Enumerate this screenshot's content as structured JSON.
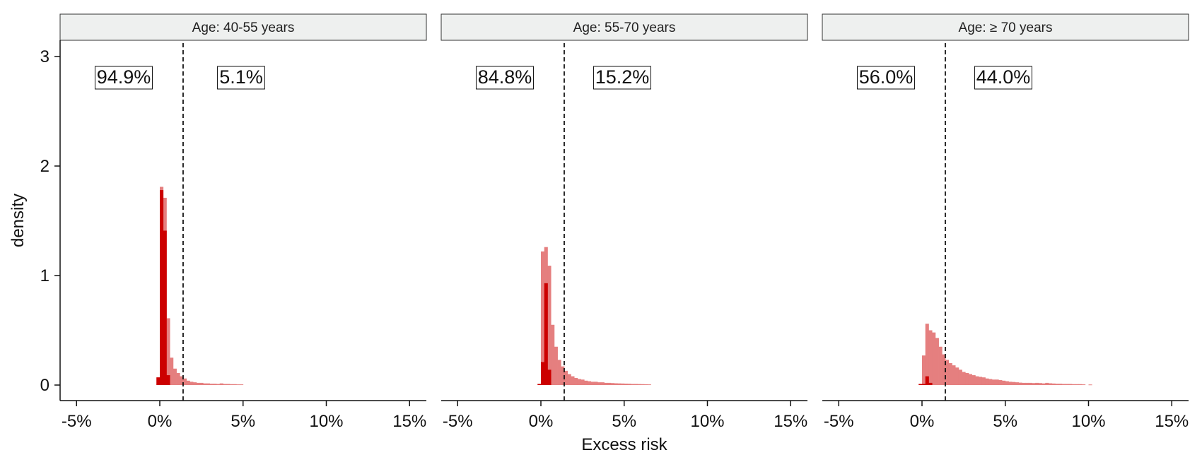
{
  "chart_data": {
    "type": "histogram",
    "ylabel": "density",
    "xlabel": "Excess risk",
    "ylim": [
      -0.14,
      3.15
    ],
    "xlim": [
      -6,
      16
    ],
    "yticks": [
      0,
      1,
      2,
      3
    ],
    "ytick_labels": [
      "0",
      "1",
      "2",
      "3"
    ],
    "xticks": [
      -5,
      0,
      5,
      10,
      15
    ],
    "xtick_labels": [
      "-5%",
      "0%",
      "5%",
      "10%",
      "15%"
    ],
    "threshold": 1.4,
    "bin_width": 0.2,
    "colors": {
      "light": "#e57f7f",
      "dark": "#cc0000",
      "strip_fill": "#eef0ef",
      "threshold_line": "#111111"
    },
    "panels": [
      {
        "title": "Age: 40-55 years",
        "left_pct": "94.9%",
        "right_pct": "5.1%",
        "light": [
          [
            -0.2,
            0.07
          ],
          [
            0,
            1.81
          ],
          [
            0.2,
            1.71
          ],
          [
            0.4,
            0.61
          ],
          [
            0.6,
            0.25
          ],
          [
            0.8,
            0.15
          ],
          [
            1.0,
            0.11
          ],
          [
            1.2,
            0.08
          ],
          [
            1.4,
            0.06
          ],
          [
            1.6,
            0.04
          ],
          [
            1.8,
            0.03
          ],
          [
            2.0,
            0.025
          ],
          [
            2.2,
            0.02
          ],
          [
            2.4,
            0.02
          ],
          [
            2.6,
            0.015
          ],
          [
            2.8,
            0.015
          ],
          [
            3.0,
            0.012
          ],
          [
            3.2,
            0.012
          ],
          [
            3.4,
            0.01
          ],
          [
            3.6,
            0.015
          ],
          [
            3.8,
            0.01
          ],
          [
            4.0,
            0.01
          ],
          [
            4.2,
            0.008
          ],
          [
            4.4,
            0.008
          ],
          [
            4.6,
            0.006
          ],
          [
            4.8,
            0.006
          ]
        ],
        "dark": [
          [
            -0.2,
            0.07
          ],
          [
            0,
            1.78
          ],
          [
            0.2,
            1.41
          ],
          [
            0.4,
            0.09
          ]
        ]
      },
      {
        "title": "Age: 55-70 years",
        "left_pct": "84.8%",
        "right_pct": "15.2%",
        "light": [
          [
            -0.2,
            0.01
          ],
          [
            0,
            1.22
          ],
          [
            0.2,
            1.26
          ],
          [
            0.4,
            1.09
          ],
          [
            0.6,
            0.55
          ],
          [
            0.8,
            0.35
          ],
          [
            1.0,
            0.23
          ],
          [
            1.2,
            0.17
          ],
          [
            1.4,
            0.13
          ],
          [
            1.6,
            0.1
          ],
          [
            1.8,
            0.08
          ],
          [
            2.0,
            0.065
          ],
          [
            2.2,
            0.055
          ],
          [
            2.4,
            0.05
          ],
          [
            2.6,
            0.04
          ],
          [
            2.8,
            0.035
          ],
          [
            3.0,
            0.03
          ],
          [
            3.2,
            0.03
          ],
          [
            3.4,
            0.025
          ],
          [
            3.6,
            0.025
          ],
          [
            3.8,
            0.02
          ],
          [
            4.0,
            0.02
          ],
          [
            4.2,
            0.018
          ],
          [
            4.4,
            0.016
          ],
          [
            4.6,
            0.015
          ],
          [
            4.8,
            0.014
          ],
          [
            5.0,
            0.013
          ],
          [
            5.2,
            0.012
          ],
          [
            5.4,
            0.01
          ],
          [
            5.6,
            0.01
          ],
          [
            5.8,
            0.009
          ],
          [
            6.0,
            0.008
          ],
          [
            6.2,
            0.007
          ],
          [
            6.4,
            0.006
          ]
        ],
        "dark": [
          [
            -0.2,
            0.01
          ],
          [
            0,
            0.21
          ],
          [
            0.2,
            0.93
          ],
          [
            0.4,
            0.14
          ]
        ]
      },
      {
        "title": "Age: ≥ 70 years",
        "left_pct": "56.0%",
        "right_pct": "44.0%",
        "light": [
          [
            -0.2,
            0.01
          ],
          [
            0,
            0.27
          ],
          [
            0.2,
            0.56
          ],
          [
            0.4,
            0.5
          ],
          [
            0.6,
            0.48
          ],
          [
            0.8,
            0.43
          ],
          [
            1.0,
            0.35
          ],
          [
            1.2,
            0.28
          ],
          [
            1.4,
            0.23
          ],
          [
            1.6,
            0.2
          ],
          [
            1.8,
            0.18
          ],
          [
            2.0,
            0.16
          ],
          [
            2.2,
            0.14
          ],
          [
            2.4,
            0.12
          ],
          [
            2.6,
            0.11
          ],
          [
            2.8,
            0.1
          ],
          [
            3.0,
            0.09
          ],
          [
            3.2,
            0.08
          ],
          [
            3.4,
            0.075
          ],
          [
            3.6,
            0.07
          ],
          [
            3.8,
            0.06
          ],
          [
            4.0,
            0.055
          ],
          [
            4.2,
            0.05
          ],
          [
            4.4,
            0.05
          ],
          [
            4.6,
            0.045
          ],
          [
            4.8,
            0.04
          ],
          [
            5.0,
            0.035
          ],
          [
            5.2,
            0.03
          ],
          [
            5.4,
            0.028
          ],
          [
            5.6,
            0.025
          ],
          [
            5.8,
            0.022
          ],
          [
            6.0,
            0.02
          ],
          [
            6.2,
            0.02
          ],
          [
            6.4,
            0.02
          ],
          [
            6.6,
            0.018
          ],
          [
            6.8,
            0.02
          ],
          [
            7.0,
            0.018
          ],
          [
            7.2,
            0.015
          ],
          [
            7.4,
            0.02
          ],
          [
            7.6,
            0.016
          ],
          [
            7.8,
            0.014
          ],
          [
            8.0,
            0.012
          ],
          [
            8.2,
            0.012
          ],
          [
            8.4,
            0.01
          ],
          [
            8.6,
            0.01
          ],
          [
            8.8,
            0.01
          ],
          [
            9.0,
            0.008
          ],
          [
            9.2,
            0.008
          ],
          [
            9.4,
            0.008
          ],
          [
            9.6,
            0.006
          ],
          [
            10.0,
            0.005
          ]
        ],
        "dark": [
          [
            -0.2,
            0.01
          ],
          [
            0,
            0.01
          ],
          [
            0.2,
            0.08
          ],
          [
            0.4,
            0.02
          ]
        ]
      }
    ]
  }
}
